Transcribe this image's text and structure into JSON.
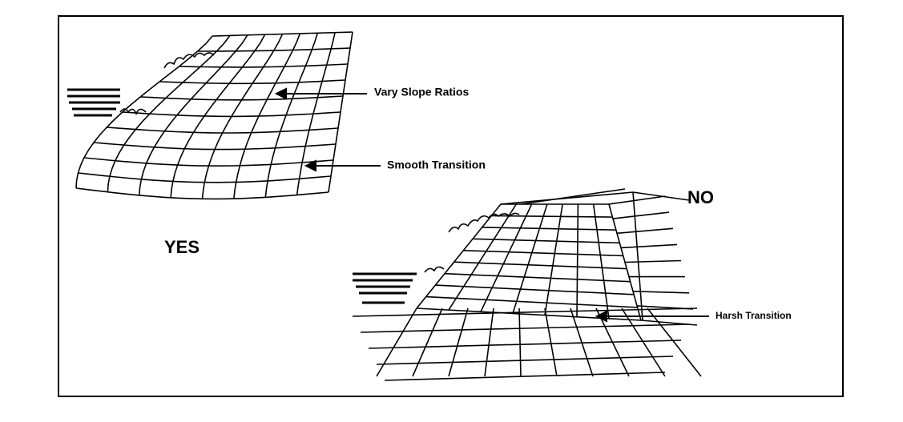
{
  "yes_panel": {
    "label": "YES",
    "annotations": [
      "Vary Slope Ratios",
      "Smooth Transition"
    ]
  },
  "no_panel": {
    "label": "NO",
    "annotations": [
      "Harsh Transition"
    ]
  }
}
